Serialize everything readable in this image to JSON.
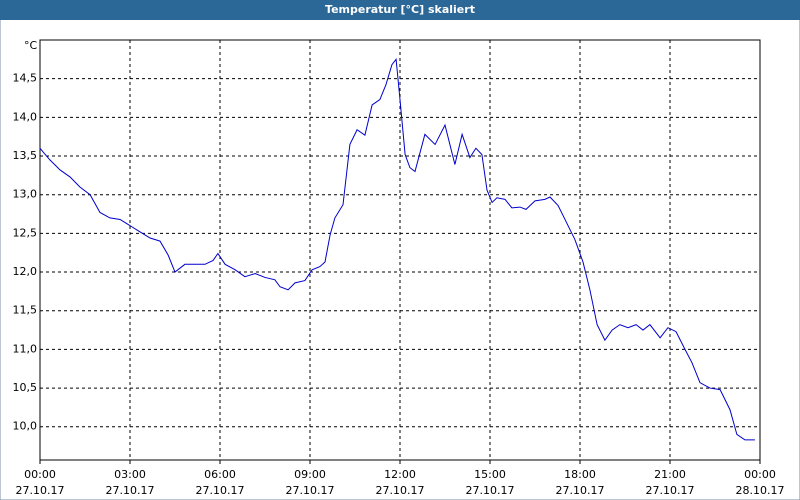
{
  "chart_data": {
    "type": "line",
    "title": "Temperatur [°C] skaliert",
    "y_unit": "°C",
    "x": [
      0,
      0.33,
      0.67,
      1,
      1.33,
      1.67,
      2,
      2.33,
      2.67,
      3,
      3.33,
      3.67,
      4,
      4.27,
      4.5,
      4.83,
      5.17,
      5.5,
      5.77,
      5.93,
      6.17,
      6.5,
      6.83,
      7.17,
      7.5,
      7.83,
      8,
      8.27,
      8.5,
      8.83,
      9.07,
      9.33,
      9.5,
      9.67,
      9.83,
      10.1,
      10.33,
      10.57,
      10.83,
      11.07,
      11.33,
      11.53,
      11.73,
      11.87,
      12,
      12.17,
      12.33,
      12.5,
      12.83,
      13.17,
      13.5,
      13.83,
      14.07,
      14.33,
      14.53,
      14.73,
      14.9,
      15.07,
      15.23,
      15.5,
      15.73,
      16,
      16.2,
      16.5,
      16.83,
      17,
      17.27,
      17.5,
      17.83,
      18.1,
      18.33,
      18.57,
      18.83,
      19.07,
      19.33,
      19.6,
      19.87,
      20.1,
      20.33,
      20.67,
      20.93,
      21.2,
      21.5,
      21.73,
      22,
      22.33,
      22.67,
      23,
      23.23,
      23.5,
      23.83
    ],
    "series": [
      {
        "color": "#0000cc",
        "values": [
          13.6,
          13.45,
          13.32,
          13.23,
          13.1,
          13.0,
          12.77,
          12.7,
          12.68,
          12.6,
          12.52,
          12.44,
          12.4,
          12.22,
          12.0,
          12.1,
          12.1,
          12.1,
          12.15,
          12.24,
          12.1,
          12.03,
          11.94,
          11.98,
          11.93,
          11.9,
          11.81,
          11.77,
          11.86,
          11.89,
          12.03,
          12.07,
          12.13,
          12.48,
          12.7,
          12.87,
          13.65,
          13.84,
          13.77,
          14.16,
          14.23,
          14.42,
          14.68,
          14.75,
          14.23,
          13.52,
          13.35,
          13.3,
          13.78,
          13.65,
          13.9,
          13.39,
          13.78,
          13.48,
          13.6,
          13.52,
          13.06,
          12.9,
          12.96,
          12.94,
          12.83,
          12.84,
          12.81,
          12.92,
          12.94,
          12.97,
          12.86,
          12.68,
          12.42,
          12.13,
          11.77,
          11.32,
          11.12,
          11.25,
          11.32,
          11.28,
          11.32,
          11.25,
          11.32,
          11.15,
          11.28,
          11.23,
          11.0,
          10.83,
          10.57,
          10.5,
          10.48,
          10.22,
          9.9,
          9.83,
          9.83
        ]
      }
    ],
    "xlim": [
      0,
      24
    ],
    "xticks": [
      {
        "value": 0,
        "label": "00:00"
      },
      {
        "value": 3,
        "label": "03:00"
      },
      {
        "value": 6,
        "label": "06:00"
      },
      {
        "value": 9,
        "label": "09:00"
      },
      {
        "value": 12,
        "label": "12:00"
      },
      {
        "value": 15,
        "label": "15:00"
      },
      {
        "value": 18,
        "label": "18:00"
      },
      {
        "value": 21,
        "label": "21:00"
      },
      {
        "value": 24,
        "label": "00:00"
      }
    ],
    "xtick_dates": [
      "27.10.17",
      "27.10.17",
      "27.10.17",
      "27.10.17",
      "27.10.17",
      "27.10.17",
      "27.10.17",
      "27.10.17",
      "28.10.17"
    ],
    "ylim": [
      9.57,
      15.0
    ],
    "yticks": [
      {
        "value": 10,
        "label": "10,0"
      },
      {
        "value": 10.5,
        "label": "10,5"
      },
      {
        "value": 11,
        "label": "11,0"
      },
      {
        "value": 11.5,
        "label": "11,5"
      },
      {
        "value": 12,
        "label": "12,0"
      },
      {
        "value": 12.5,
        "label": "12,5"
      },
      {
        "value": 13,
        "label": "13,0"
      },
      {
        "value": 13.5,
        "label": "13,5"
      },
      {
        "value": 14,
        "label": "14,0"
      },
      {
        "value": 14.5,
        "label": "14,5"
      }
    ],
    "grid": true
  }
}
